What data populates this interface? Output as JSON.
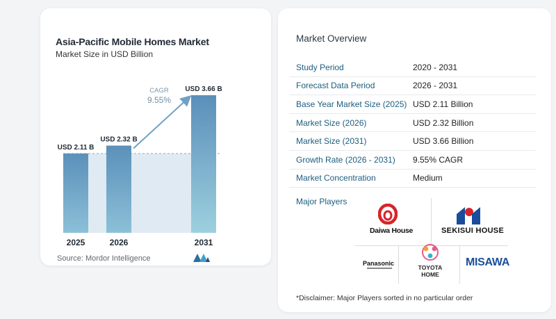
{
  "chart_data": {
    "type": "bar",
    "title": "Asia-Pacific Mobile Homes Market",
    "subtitle": "Market Size in USD Billion",
    "categories": [
      "2025",
      "2026",
      "2031"
    ],
    "values": [
      2.11,
      2.32,
      3.66
    ],
    "data_labels": [
      "USD 2.11 B",
      "USD 2.32 B",
      "USD 3.66 B"
    ],
    "ylim": [
      0,
      3.66
    ],
    "baseline_reference": 2.11,
    "cagr_label": "CAGR",
    "cagr_value": "9.55%",
    "colors": {
      "bar_light": "#9ec7df",
      "bar_dark": "#5b90ba",
      "band": "#dfeaf2",
      "arrow": "#6fa0c4",
      "cagr_text": "#6f8fa6"
    }
  },
  "source": "Source:  Mordor Intelligence",
  "overview": {
    "title": "Market Overview",
    "rows": [
      {
        "key": "Study Period",
        "value": "2020 - 2031"
      },
      {
        "key": "Forecast Data Period",
        "value": "2026 - 2031"
      },
      {
        "key": "Base Year Market Size (2025)",
        "value": "USD 2.11 Billion"
      },
      {
        "key": "Market Size (2026)",
        "value": "USD 2.32 Billion"
      },
      {
        "key": "Market Size (2031)",
        "value": "USD 3.66 Billion"
      },
      {
        "key": "Growth Rate (2026 - 2031)",
        "value": "9.55% CAGR"
      },
      {
        "key": "Market Concentration",
        "value": "Medium"
      }
    ]
  },
  "players": {
    "label": "Major Players",
    "daiwa": "Daiwa House",
    "sekisui": "SEKISUI HOUSE",
    "panasonic": "Panasonic",
    "toyota_line1": "TOYOTA",
    "toyota_line2": "HOME",
    "misawa": "MISAWA"
  },
  "disclaimer": "*Disclaimer: Major Players sorted in no particular order"
}
